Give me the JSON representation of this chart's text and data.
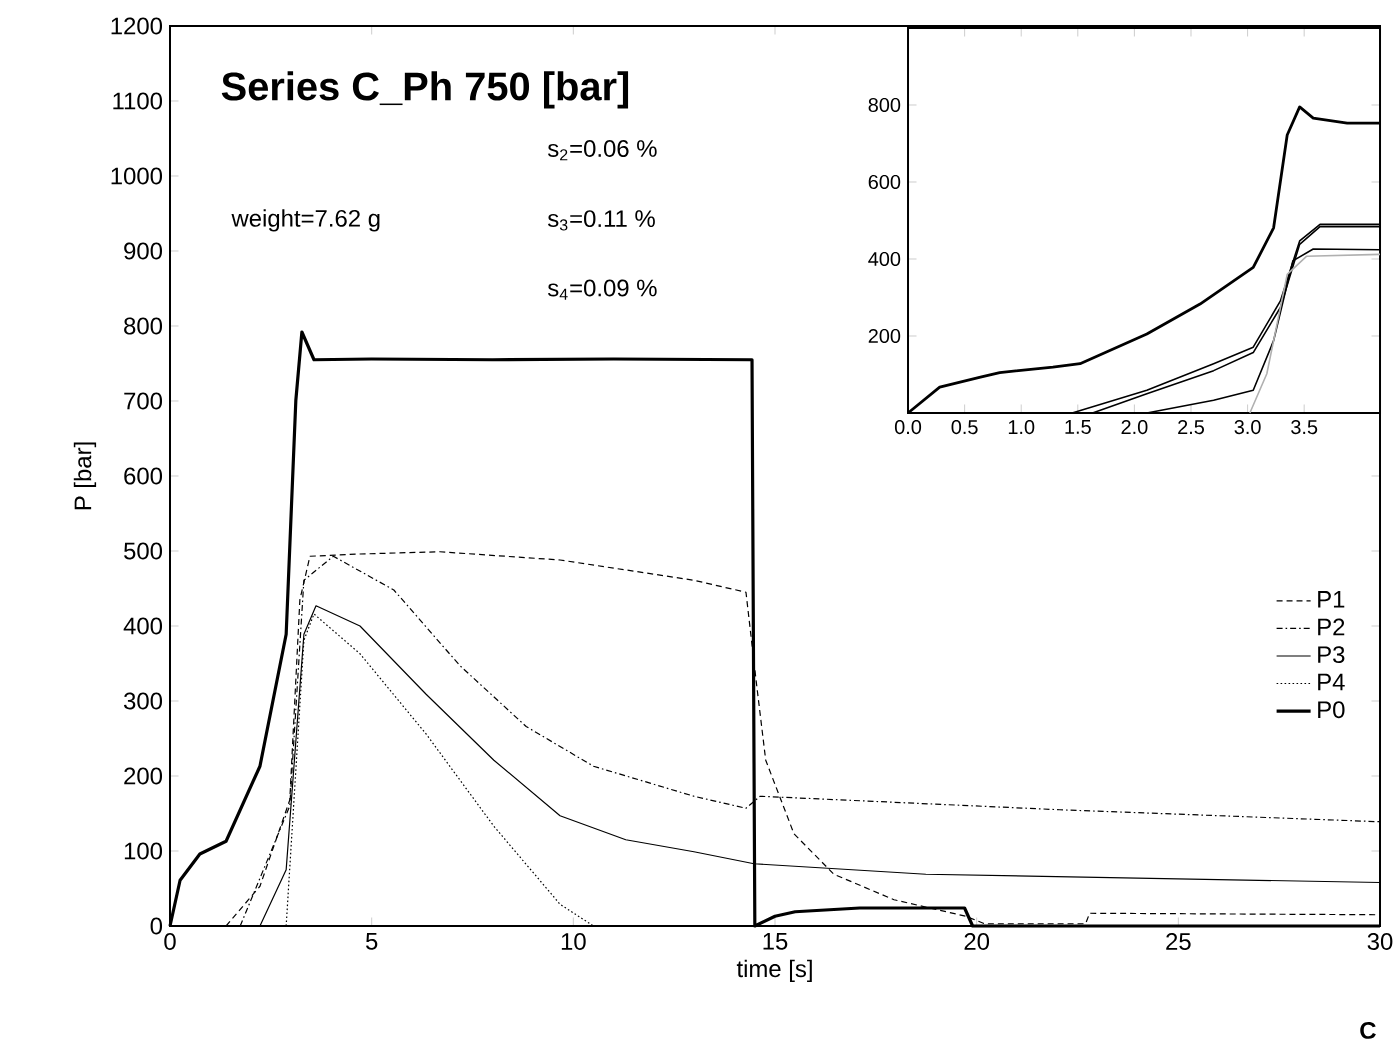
{
  "chart_data": [
    {
      "type": "line",
      "title": "Series C_Ph 750 [bar]",
      "xlabel": "time [s]",
      "ylabel": "P [bar]",
      "annotations": [
        "s$_{2}$=0.06 %",
        "weight=7.62 g",
        "s$_{3}$=0.11 %",
        "s$_{4}$=0.09 %",
        "C"
      ],
      "xlim": [
        0,
        30
      ],
      "ylim": [
        0,
        1200
      ],
      "xticks": [
        0,
        5,
        10,
        15,
        20,
        25,
        30
      ],
      "yticks": [
        0,
        100,
        200,
        300,
        400,
        500,
        600,
        700,
        800,
        900,
        1000,
        1100,
        1200
      ],
      "legend": "right",
      "grid": false,
      "series": [
        {
          "name": "P1",
          "color": "#000000",
          "line_style": "dashed",
          "x": [
            1.39,
            2.23,
            2.97,
            3.22,
            3.47,
            4.71,
            6.69,
            9.67,
            12.99,
            14.28,
            14.53,
            14.77,
            15.47,
            16.46,
            17.95,
            19.73,
            20.2,
            22.7,
            22.8,
            30
          ],
          "values": [
            0,
            53,
            168,
            435,
            493,
            496,
            499,
            488,
            461,
            445,
            328,
            221,
            123,
            69,
            35,
            13,
            3,
            3,
            17,
            15
          ]
        },
        {
          "name": "P2",
          "color": "#000000",
          "line_style": "dashdot",
          "x": [
            1.74,
            2.97,
            3.32,
            4.05,
            5.55,
            7.19,
            8.83,
            10.5,
            12.99,
            14.28,
            14.63,
            22.06,
            30
          ],
          "values": [
            0,
            160,
            461,
            493,
            448,
            347,
            266,
            213,
            173,
            157,
            173,
            155,
            139
          ]
        },
        {
          "name": "P3",
          "color": "#000000",
          "line_style": "solid",
          "x": [
            2.23,
            2.88,
            3.32,
            3.62,
            4.71,
            6.35,
            8.03,
            9.67,
            11.3,
            12.99,
            14.48,
            18.74,
            30
          ],
          "values": [
            0,
            75,
            389,
            427,
            400,
            309,
            221,
            147,
            115,
            99,
            83,
            69,
            58
          ]
        },
        {
          "name": "P4",
          "color": "#000000",
          "line_style": "dotted",
          "x": [
            2.88,
            3.32,
            3.57,
            4.71,
            6.35,
            8.03,
            9.67,
            10.5,
            30
          ],
          "values": [
            0,
            381,
            416,
            363,
            256,
            133,
            29,
            0,
            0
          ]
        },
        {
          "name": "P0",
          "color": "#000000",
          "line_style": "solid",
          "x": [
            0,
            0.25,
            0.74,
            1.39,
            2.23,
            2.88,
            3.12,
            3.27,
            3.57,
            5,
            8,
            11,
            14.43,
            14.5,
            15.0,
            15.5,
            17.1,
            19.7,
            19.9,
            30
          ],
          "values": [
            0,
            61,
            96,
            113,
            213,
            389,
            701,
            792,
            755,
            756,
            755,
            756,
            755,
            0,
            13,
            19,
            24,
            24,
            0,
            0
          ]
        }
      ]
    },
    {
      "type": "line",
      "xlim": [
        0,
        4.17
      ],
      "ylim": [
        0,
        1000
      ],
      "xticks": [
        {
          "value": 0,
          "label": "0.0"
        },
        {
          "value": 0.5,
          "label": "0.5"
        },
        {
          "value": 1,
          "label": "1.0"
        },
        {
          "value": 1.5,
          "label": "1.5"
        },
        {
          "value": 2,
          "label": "2.0"
        },
        {
          "value": 2.5,
          "label": "2.5"
        },
        {
          "value": 3,
          "label": "3.0"
        },
        {
          "value": 3.5,
          "label": "3.5"
        }
      ],
      "yticks": [
        200,
        400,
        600,
        800
      ],
      "grid": false,
      "series": [
        {
          "color": "#000000",
          "x": [
            1.45,
            2.11,
            2.7,
            3.05,
            3.29,
            3.46,
            3.64,
            4.17
          ],
          "values": [
            0,
            59,
            128,
            171,
            291,
            447,
            490,
            490
          ]
        },
        {
          "color": "#000000",
          "x": [
            1.63,
            2.11,
            2.7,
            3.05,
            3.29,
            3.46,
            3.64,
            4.17
          ],
          "values": [
            0,
            50,
            110,
            157,
            274,
            438,
            484,
            484
          ]
        },
        {
          "color": "#000000",
          "x": [
            2.11,
            2.7,
            3.05,
            3.23,
            3.4,
            3.58,
            4.17
          ],
          "values": [
            0,
            33,
            59,
            188,
            395,
            426,
            424
          ]
        },
        {
          "color": "#b0b0b0",
          "x": [
            3.02,
            3.17,
            3.35,
            3.52,
            4.17
          ],
          "values": [
            0,
            102,
            360,
            407,
            412
          ]
        },
        {
          "color": "#000000",
          "x": [
            0,
            0.28,
            0.64,
            0.81,
            1.28,
            1.52,
            2.11,
            2.58,
            3.05,
            3.23,
            3.35,
            3.46,
            3.58,
            3.88,
            4.17
          ],
          "values": [
            0,
            67,
            93,
            105,
            119,
            128,
            205,
            283,
            378,
            481,
            722,
            795,
            766,
            753,
            753
          ]
        }
      ]
    }
  ]
}
